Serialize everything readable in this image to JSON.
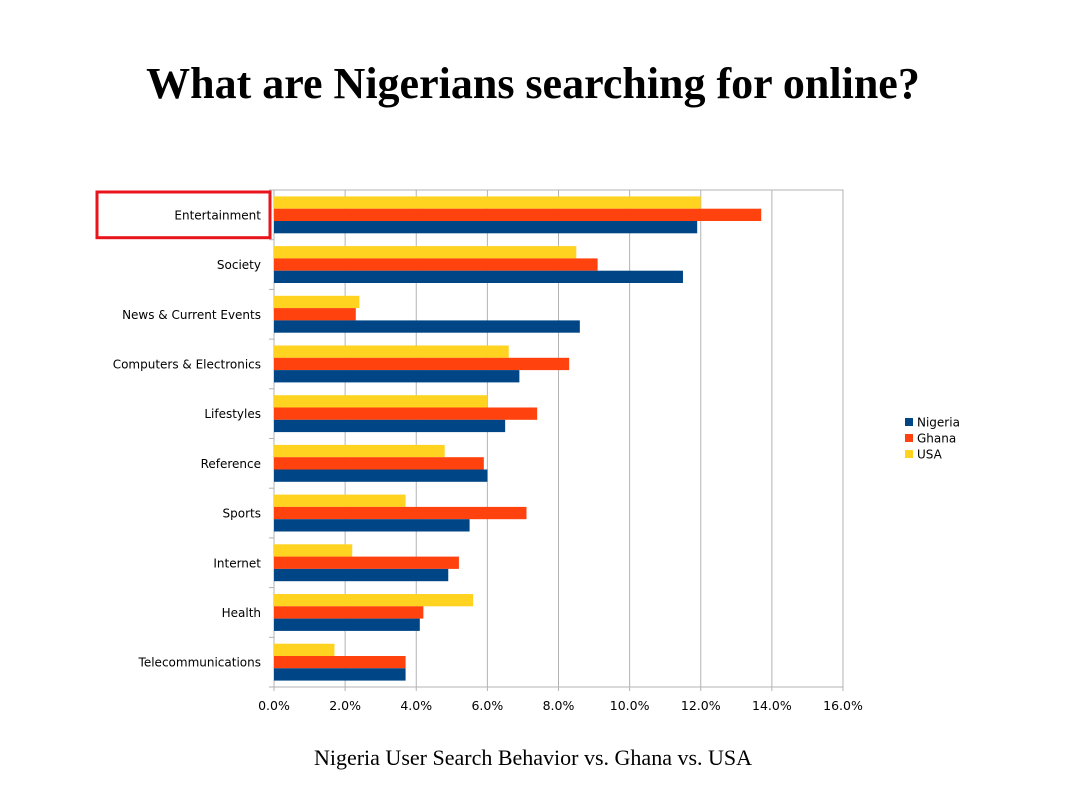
{
  "slide": {
    "title": "What are Nigerians searching for online?",
    "caption": "Nigeria User Search Behavior vs. Ghana vs. USA"
  },
  "highlight": {
    "category": "Entertainment",
    "color": "#e8141b"
  },
  "chart_data": {
    "type": "bar",
    "orientation": "horizontal",
    "categories": [
      "Entertainment",
      "Society",
      "News & Current Events",
      "Computers & Electronics",
      "Lifestyles",
      "Reference",
      "Sports",
      "Internet",
      "Health",
      "Telecommunications"
    ],
    "series": [
      {
        "name": "Nigeria",
        "color": "#004586",
        "values": [
          11.9,
          11.5,
          8.6,
          6.9,
          6.5,
          6.0,
          5.5,
          4.9,
          4.1,
          3.7
        ]
      },
      {
        "name": "Ghana",
        "color": "#ff420e",
        "values": [
          13.7,
          9.1,
          2.3,
          8.3,
          7.4,
          5.9,
          7.1,
          5.2,
          4.2,
          3.7
        ]
      },
      {
        "name": "USA",
        "color": "#ffd320",
        "values": [
          12.0,
          8.5,
          2.4,
          6.6,
          6.0,
          4.8,
          3.7,
          2.2,
          5.6,
          1.7
        ]
      }
    ],
    "xlim": [
      0,
      16
    ],
    "xticks": [
      "0.0%",
      "2.0%",
      "4.0%",
      "6.0%",
      "8.0%",
      "10.0%",
      "12.0%",
      "14.0%",
      "16.0%"
    ],
    "grid": true,
    "legend": "right",
    "bar_order_top_to_bottom": [
      "USA",
      "Ghana",
      "Nigeria"
    ]
  }
}
